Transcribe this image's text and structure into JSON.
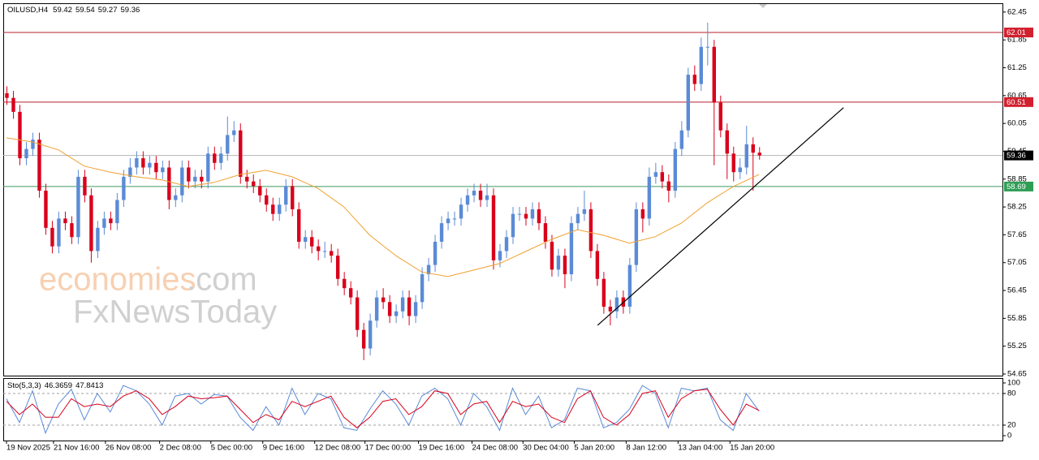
{
  "chart_data": [
    {
      "type": "candlestick",
      "title": "OILUSD,H4",
      "up_color": "#5b8bd6",
      "down_color": "#d9001b",
      "open": [
        60.7,
        60.6,
        60.3,
        59.3,
        59.5,
        59.7,
        58.6,
        57.8,
        57.4,
        58.0,
        57.9,
        57.6,
        58.9,
        58.5,
        57.3,
        57.8,
        58.0,
        57.9,
        58.4,
        58.9,
        59.1,
        59.3,
        59.1,
        59.2,
        59.0,
        59.1,
        58.4,
        58.5,
        59.1,
        58.8,
        58.9,
        58.8,
        59.4,
        59.2,
        59.4,
        59.8,
        59.9,
        58.9,
        58.8,
        58.7,
        58.5,
        58.3,
        58.1,
        58.3,
        58.7,
        58.2,
        57.5,
        57.6,
        57.4,
        57.3,
        57.3,
        57.2,
        56.7,
        56.5,
        56.3,
        55.6,
        55.2,
        55.8,
        56.3,
        56.2,
        55.9,
        56.0,
        56.3,
        55.9,
        56.2,
        56.8,
        57.0,
        57.5,
        57.9,
        58.0,
        58.0,
        58.3,
        58.5,
        58.6,
        58.4,
        58.5,
        57.1,
        57.3,
        57.6,
        58.1,
        58.1,
        58.0,
        58.2,
        57.9,
        57.5,
        56.9,
        57.2,
        56.8,
        57.9,
        58.1,
        58.2,
        57.3,
        56.7,
        56.1,
        56.0,
        56.3,
        56.1,
        57.0,
        58.2,
        58.0,
        58.9,
        59.0,
        58.8,
        58.6,
        59.5,
        59.9,
        61.1,
        60.9,
        61.7,
        61.7,
        60.5,
        59.9,
        59.4,
        59.0,
        59.1,
        59.6,
        59.42
      ],
      "high": [
        60.85,
        60.75,
        60.45,
        59.65,
        59.85,
        59.85,
        58.75,
        57.95,
        58.15,
        58.15,
        58.05,
        59.05,
        59.05,
        58.65,
        57.95,
        58.15,
        58.15,
        58.55,
        59.05,
        59.3,
        59.45,
        59.45,
        59.35,
        59.35,
        59.25,
        59.25,
        58.65,
        59.25,
        59.25,
        59.05,
        59.05,
        59.55,
        59.55,
        59.55,
        60.2,
        60.1,
        60.05,
        59.05,
        58.95,
        58.85,
        58.65,
        58.45,
        58.45,
        58.85,
        58.85,
        58.35,
        57.75,
        57.75,
        57.55,
        57.5,
        57.45,
        57.35,
        56.85,
        56.65,
        56.45,
        55.75,
        55.95,
        56.45,
        56.5,
        56.35,
        56.15,
        56.45,
        56.45,
        56.35,
        56.95,
        57.15,
        57.65,
        58.05,
        58.15,
        58.15,
        58.45,
        58.65,
        58.75,
        58.75,
        58.75,
        58.65,
        57.45,
        57.75,
        58.25,
        58.25,
        58.25,
        58.35,
        58.35,
        58.05,
        57.65,
        57.35,
        57.35,
        58.05,
        58.25,
        58.6,
        58.35,
        57.45,
        56.85,
        56.25,
        56.45,
        56.45,
        57.15,
        58.35,
        58.35,
        59.1,
        59.2,
        59.15,
        58.95,
        59.65,
        60.1,
        61.25,
        61.3,
        61.9,
        62.22,
        61.85,
        60.65,
        60.05,
        59.55,
        59.3,
        60.0,
        59.75,
        59.54
      ],
      "low": [
        60.45,
        60.15,
        59.15,
        59.15,
        59.35,
        58.45,
        57.65,
        57.25,
        57.25,
        57.75,
        57.45,
        57.45,
        58.35,
        57.05,
        57.15,
        57.65,
        57.75,
        57.75,
        58.25,
        58.75,
        58.95,
        58.95,
        58.95,
        58.85,
        58.85,
        58.2,
        58.25,
        58.35,
        58.65,
        58.65,
        58.65,
        58.65,
        59.05,
        59.05,
        59.25,
        59.65,
        58.75,
        58.65,
        58.55,
        58.35,
        58.15,
        57.95,
        57.95,
        58.15,
        58.05,
        57.35,
        57.35,
        57.25,
        57.1,
        57.15,
        57.05,
        56.55,
        56.35,
        56.15,
        55.45,
        54.95,
        55.05,
        55.65,
        56.05,
        55.75,
        55.75,
        55.85,
        55.7,
        55.75,
        56.05,
        56.65,
        56.85,
        57.35,
        57.75,
        57.85,
        57.85,
        58.15,
        58.35,
        58.25,
        58.25,
        56.9,
        56.95,
        57.15,
        57.45,
        57.95,
        57.85,
        57.85,
        57.75,
        57.35,
        56.75,
        56.75,
        56.5,
        56.65,
        57.75,
        57.95,
        57.15,
        56.55,
        55.95,
        55.7,
        55.85,
        55.95,
        55.95,
        56.85,
        57.7,
        57.85,
        58.75,
        58.65,
        58.35,
        58.45,
        59.35,
        59.75,
        60.75,
        60.75,
        61.3,
        59.15,
        59.75,
        58.85,
        58.8,
        58.85,
        58.95,
        58.6,
        59.27
      ],
      "close": [
        60.6,
        60.3,
        59.3,
        59.5,
        59.7,
        58.6,
        57.8,
        57.4,
        58.0,
        57.9,
        57.6,
        58.9,
        58.5,
        57.3,
        57.8,
        58.0,
        57.9,
        58.4,
        58.9,
        59.1,
        59.3,
        59.1,
        59.2,
        59.0,
        59.1,
        58.4,
        58.5,
        59.1,
        58.8,
        58.9,
        58.8,
        59.4,
        59.2,
        59.4,
        59.8,
        59.9,
        58.9,
        58.8,
        58.7,
        58.5,
        58.3,
        58.1,
        58.3,
        58.7,
        58.2,
        57.5,
        57.6,
        57.4,
        57.3,
        57.3,
        57.2,
        56.7,
        56.5,
        56.3,
        55.6,
        55.2,
        55.8,
        56.3,
        56.2,
        55.9,
        56.0,
        56.3,
        55.9,
        56.2,
        56.8,
        57.0,
        57.5,
        57.9,
        58.0,
        58.0,
        58.3,
        58.5,
        58.6,
        58.4,
        58.5,
        57.1,
        57.3,
        57.6,
        58.1,
        58.1,
        58.0,
        58.2,
        57.9,
        57.5,
        56.9,
        57.2,
        56.8,
        57.9,
        58.1,
        58.2,
        57.3,
        56.7,
        56.1,
        56.0,
        56.3,
        56.1,
        57.0,
        58.2,
        58.0,
        58.9,
        59.0,
        58.8,
        58.6,
        59.5,
        59.9,
        61.1,
        60.9,
        61.7,
        61.7,
        60.5,
        59.9,
        59.4,
        59.0,
        59.1,
        59.6,
        59.42,
        59.36
      ],
      "ma": {
        "color": "#f0a030",
        "x": [
          0,
          4,
          8,
          12,
          16,
          20,
          24,
          28,
          32,
          36,
          40,
          44,
          48,
          52,
          56,
          60,
          64,
          68,
          72,
          76,
          80,
          84,
          88,
          92,
          96,
          100,
          104,
          108,
          112,
          116
        ],
        "values": [
          59.74,
          59.65,
          59.48,
          59.13,
          59.0,
          58.9,
          58.83,
          58.69,
          58.78,
          58.95,
          59.04,
          58.9,
          58.65,
          58.25,
          57.64,
          57.2,
          56.85,
          56.75,
          56.89,
          57.03,
          57.29,
          57.55,
          57.76,
          57.64,
          57.47,
          57.61,
          57.9,
          58.34,
          58.69,
          58.95
        ]
      },
      "levels": [
        {
          "value": 62.01,
          "color": "#b8202e",
          "label_color": "#d2202e"
        },
        {
          "value": 60.51,
          "color": "#b8202e",
          "label_color": "#d2202e"
        },
        {
          "value": 59.36,
          "color": "#b4b4b4",
          "label_color": "#000000"
        },
        {
          "value": 58.69,
          "color": "#3c9a5f",
          "label_color": "#2e9e55"
        }
      ],
      "trendline": {
        "color": "#000000",
        "x": [
          91.1,
          129
        ],
        "values": [
          55.7,
          60.39
        ]
      },
      "xlim": [
        -0.5,
        153.5
      ],
      "ylim": [
        54.615,
        62.64
      ],
      "yticks": [
        62.45,
        61.85,
        61.25,
        60.65,
        60.05,
        59.45,
        58.85,
        58.25,
        57.65,
        57.05,
        56.45,
        55.85,
        55.25,
        54.65
      ],
      "watermark": [
        "economies",
        ".com",
        "FxNewsToday"
      ]
    },
    {
      "type": "stochastic",
      "title": "Sto(5,3,3)",
      "x": [
        0,
        2,
        4,
        6,
        8,
        10,
        12,
        14,
        16,
        18,
        20,
        22,
        24,
        26,
        28,
        30,
        32,
        34,
        36,
        38,
        40,
        42,
        44,
        46,
        48,
        50,
        52,
        54,
        56,
        58,
        60,
        62,
        64,
        66,
        68,
        70,
        72,
        74,
        76,
        78,
        80,
        82,
        84,
        86,
        88,
        90,
        92,
        94,
        96,
        98,
        100,
        102,
        104,
        106,
        108,
        110,
        112,
        114,
        116
      ],
      "series": [
        {
          "color": "#5b8bd6",
          "values": [
            70,
            25,
            85,
            5,
            60,
            88,
            30,
            80,
            45,
            95,
            85,
            60,
            20,
            75,
            80,
            60,
            78,
            75,
            35,
            10,
            55,
            20,
            90,
            40,
            80,
            70,
            15,
            10,
            50,
            85,
            60,
            20,
            75,
            90,
            70,
            20,
            80,
            55,
            10,
            90,
            40,
            75,
            15,
            30,
            90,
            85,
            15,
            25,
            50,
            95,
            80,
            15,
            90,
            85,
            90,
            30,
            10,
            80,
            46.3659
          ]
        },
        {
          "color": "#d9001b",
          "values": [
            65,
            40,
            60,
            35,
            35,
            70,
            55,
            60,
            55,
            75,
            85,
            70,
            40,
            55,
            75,
            70,
            72,
            75,
            50,
            25,
            40,
            30,
            65,
            55,
            65,
            75,
            35,
            15,
            35,
            65,
            70,
            40,
            55,
            85,
            80,
            40,
            60,
            65,
            25,
            65,
            55,
            60,
            35,
            25,
            70,
            85,
            35,
            20,
            40,
            80,
            85,
            35,
            70,
            85,
            88,
            50,
            20,
            60,
            47.8413
          ]
        }
      ],
      "xlim": [
        -0.5,
        153.5
      ],
      "ylim": [
        -9.2,
        109.2
      ],
      "yticks": [
        100,
        80,
        20,
        0
      ],
      "xticks": [
        {
          "value": 0,
          "label": "19 Nov 2025"
        },
        {
          "value": 7.25,
          "label": "21 Nov 16:00"
        },
        {
          "value": 15.25,
          "label": "26 Nov 08:00"
        },
        {
          "value": 23.6,
          "label": "2 Dec 08:00"
        },
        {
          "value": 31.5,
          "label": "5 Dec 00:00"
        },
        {
          "value": 39.5,
          "label": "9 Dec 16:00"
        },
        {
          "value": 47.5,
          "label": "12 Dec 08:00"
        },
        {
          "value": 55.25,
          "label": "17 Dec 00:00"
        },
        {
          "value": 63.5,
          "label": "19 Dec 16:00"
        },
        {
          "value": 71.75,
          "label": "24 Dec 08:00"
        },
        {
          "value": 79.6,
          "label": "30 Dec 04:00"
        },
        {
          "value": 87.5,
          "label": "5 Jan 20:00"
        },
        {
          "value": 95.5,
          "label": "8 Jan 12:00"
        },
        {
          "value": 103.5,
          "label": "13 Jan 04:00"
        },
        {
          "value": 111.5,
          "label": "15 Jan 20:00"
        }
      ]
    }
  ]
}
